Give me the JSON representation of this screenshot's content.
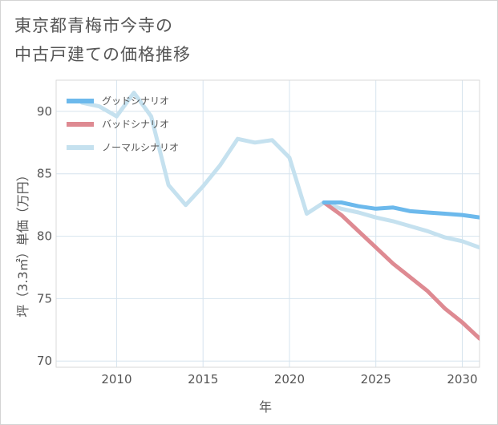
{
  "title_lines": [
    "東京都青梅市今寺の",
    "中古戸建ての価格推移"
  ],
  "chart_data": {
    "type": "line",
    "title": "東京都青梅市今寺の中古戸建ての価格推移",
    "xlabel": "年",
    "ylabel": "坪（3.3㎡）単価（万円）",
    "xlim": [
      2006.5,
      2031
    ],
    "ylim": [
      69.5,
      92.5
    ],
    "x_ticks": [
      2010,
      2015,
      2020,
      2025,
      2030
    ],
    "y_ticks": [
      70,
      75,
      80,
      85,
      90
    ],
    "legend_position": "top-left",
    "series": [
      {
        "name": "グッドシナリオ",
        "color": "#6cb9ec",
        "x": [
          2022,
          2023,
          2024,
          2025,
          2026,
          2027,
          2028,
          2029,
          2030,
          2031
        ],
        "values": [
          82.7,
          82.7,
          82.4,
          82.2,
          82.3,
          82.0,
          81.9,
          81.8,
          81.7,
          81.5
        ]
      },
      {
        "name": "バッドシナリオ",
        "color": "#de8a92",
        "x": [
          2022,
          2023,
          2024,
          2025,
          2026,
          2027,
          2028,
          2029,
          2030,
          2031
        ],
        "values": [
          82.7,
          81.7,
          80.4,
          79.1,
          77.8,
          76.7,
          75.6,
          74.2,
          73.1,
          71.8
        ]
      },
      {
        "name": "ノーマルシナリオ",
        "color": "#c5e1ef",
        "x": [
          2008,
          2009,
          2010,
          2011,
          2012,
          2013,
          2014,
          2015,
          2016,
          2017,
          2018,
          2019,
          2020,
          2021,
          2022,
          2023,
          2024,
          2025,
          2026,
          2027,
          2028,
          2029,
          2030,
          2031
        ],
        "values": [
          90.7,
          90.4,
          89.6,
          91.5,
          89.6,
          84.1,
          82.5,
          84.0,
          85.7,
          87.8,
          87.5,
          87.7,
          86.3,
          81.8,
          82.7,
          82.2,
          81.9,
          81.5,
          81.2,
          80.8,
          80.4,
          79.9,
          79.6,
          79.1
        ]
      }
    ]
  }
}
